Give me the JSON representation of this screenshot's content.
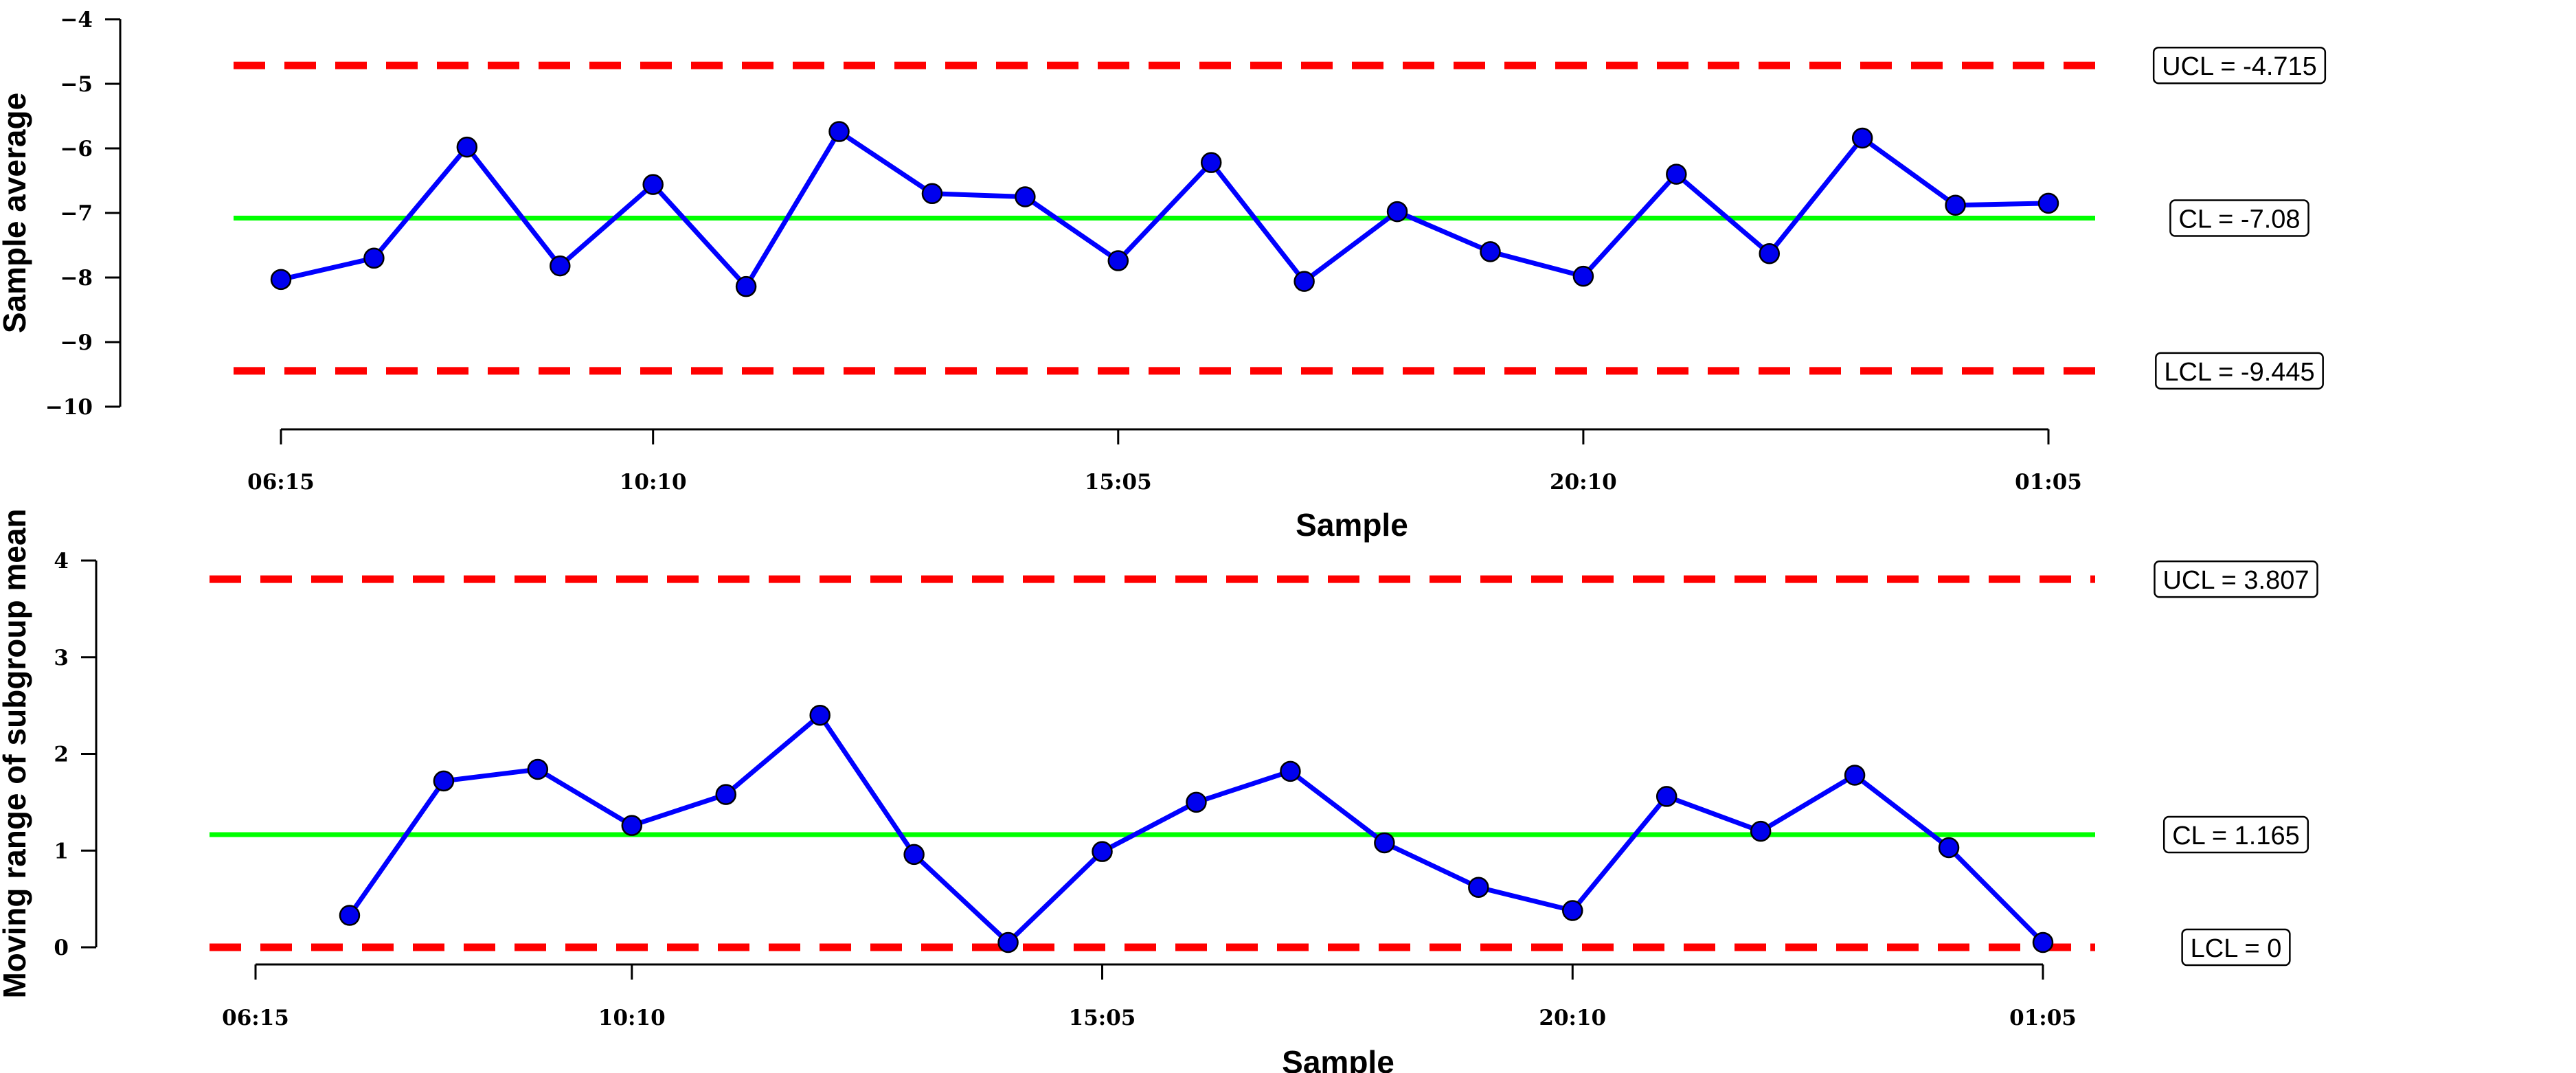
{
  "chart_data": [
    {
      "type": "line",
      "xlabel": "Sample",
      "ylabel": "Sample average",
      "ylim": [
        -10,
        -4
      ],
      "yticks": [
        "−4",
        "−5",
        "−6",
        "−7",
        "−8",
        "−9",
        "−10"
      ],
      "ytick_values": [
        -4,
        -5,
        -6,
        -7,
        -8,
        -9,
        -10
      ],
      "x_tick_labels": [
        "06:15",
        "10:10",
        "15:05",
        "20:10",
        "01:05"
      ],
      "x_tick_index": [
        1,
        5,
        10,
        15,
        20
      ],
      "x": [
        1,
        2,
        3,
        4,
        5,
        6,
        7,
        8,
        9,
        10,
        11,
        12,
        13,
        14,
        15,
        16,
        17,
        18,
        19,
        20
      ],
      "values": [
        -8.03,
        -7.7,
        -5.98,
        -7.82,
        -6.56,
        -8.14,
        -5.74,
        -6.7,
        -6.75,
        -7.74,
        -6.22,
        -8.06,
        -6.98,
        -7.6,
        -7.98,
        -6.4,
        -7.63,
        -5.84,
        -6.88,
        -6.85
      ],
      "limits": [
        {
          "kind": "UCL",
          "value": -4.715,
          "label": "UCL = -4.715",
          "color": "#ff0000",
          "style": "dashed"
        },
        {
          "kind": "CL",
          "value": -7.08,
          "label": "CL = -7.08",
          "color": "#00ff00",
          "style": "solid"
        },
        {
          "kind": "LCL",
          "value": -9.445,
          "label": "LCL = -9.445",
          "color": "#ff0000",
          "style": "dashed"
        }
      ],
      "series_color": "#0000ff",
      "point_fill": "#0000ee",
      "grid": false
    },
    {
      "type": "line",
      "xlabel": "Sample",
      "ylabel": "Moving range of subgroup mean",
      "ylim": [
        0,
        4
      ],
      "yticks": [
        "0",
        "1",
        "2",
        "3",
        "4"
      ],
      "ytick_values": [
        0,
        1,
        2,
        3,
        4
      ],
      "x_tick_labels": [
        "06:15",
        "10:10",
        "15:05",
        "20:10",
        "01:05"
      ],
      "x_tick_index": [
        1,
        5,
        10,
        15,
        20
      ],
      "x": [
        2,
        3,
        4,
        5,
        6,
        7,
        8,
        9,
        10,
        11,
        12,
        13,
        14,
        15,
        16,
        17,
        18,
        19,
        20
      ],
      "values": [
        0.33,
        1.72,
        1.84,
        1.26,
        1.58,
        2.4,
        0.96,
        0.05,
        0.99,
        1.5,
        1.82,
        1.08,
        0.62,
        0.38,
        1.56,
        1.2,
        1.78,
        1.03,
        0.05
      ],
      "limits": [
        {
          "kind": "UCL",
          "value": 3.807,
          "label": "UCL = 3.807",
          "color": "#ff0000",
          "style": "dashed"
        },
        {
          "kind": "CL",
          "value": 1.165,
          "label": "CL = 1.165",
          "color": "#00ff00",
          "style": "solid"
        },
        {
          "kind": "LCL",
          "value": 0,
          "label": "LCL = 0",
          "color": "#ff0000",
          "style": "dashed"
        }
      ],
      "series_color": "#0000ff",
      "point_fill": "#0000ee",
      "grid": false
    }
  ]
}
